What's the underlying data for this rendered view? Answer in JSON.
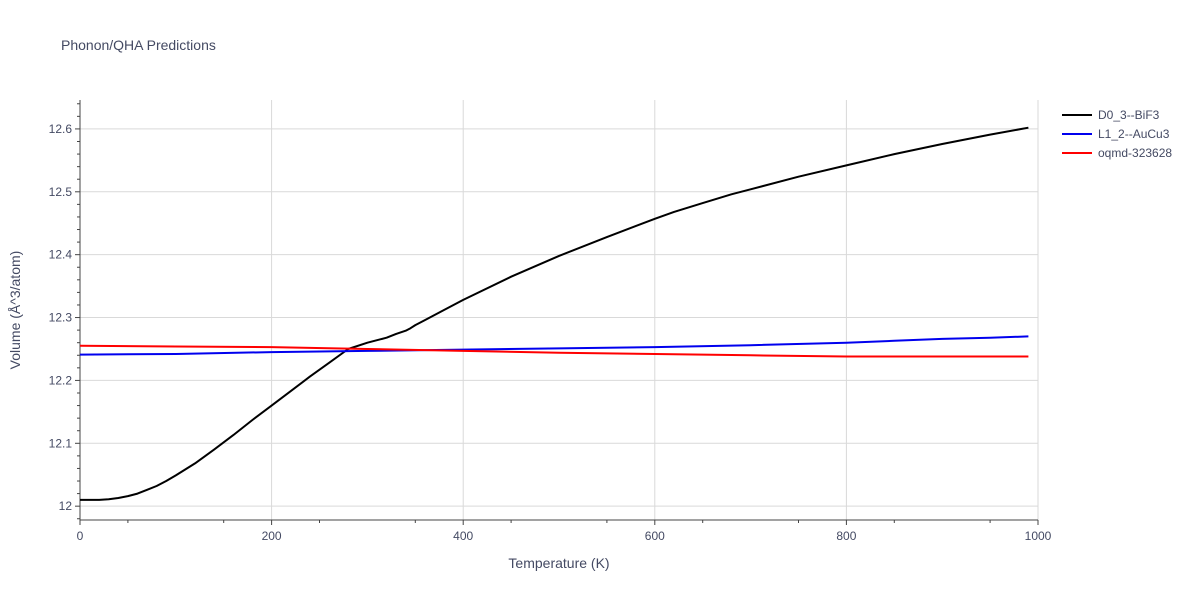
{
  "chart_data": {
    "type": "line",
    "title": "Phonon/QHA Predictions",
    "xlabel": "Temperature (K)",
    "ylabel": "Volume (Å^3/atom)",
    "xlim": [
      0,
      1000
    ],
    "ylim": [
      11.978,
      12.646
    ],
    "xticks": [
      0,
      200,
      400,
      600,
      800,
      1000
    ],
    "yticks": [
      12.0,
      12.1,
      12.2,
      12.3,
      12.4,
      12.5,
      12.6
    ],
    "ytick_labels": [
      "12",
      "12.1",
      "12.2",
      "12.3",
      "12.4",
      "12.5",
      "12.6"
    ],
    "grid": true,
    "legend_position": "top-right",
    "series": [
      {
        "name": "D0_3--BiF3",
        "color": "#000000",
        "x": [
          0,
          10,
          20,
          30,
          40,
          50,
          60,
          70,
          80,
          90,
          100,
          120,
          140,
          160,
          180,
          200,
          220,
          240,
          260,
          280,
          300,
          320,
          330,
          340,
          345,
          350,
          360,
          380,
          400,
          450,
          500,
          550,
          600,
          620,
          650,
          680,
          700,
          750,
          800,
          850,
          900,
          950,
          990
        ],
        "y": [
          12.01,
          12.01,
          12.01,
          12.011,
          12.013,
          12.016,
          12.02,
          12.026,
          12.032,
          12.04,
          12.049,
          12.068,
          12.09,
          12.113,
          12.137,
          12.16,
          12.183,
          12.206,
          12.228,
          12.25,
          12.26,
          12.268,
          12.274,
          12.279,
          12.283,
          12.288,
          12.296,
          12.312,
          12.328,
          12.365,
          12.398,
          12.428,
          12.457,
          12.468,
          12.482,
          12.496,
          12.504,
          12.524,
          12.542,
          12.56,
          12.576,
          12.591,
          12.602
        ]
      },
      {
        "name": "L1_2--AuCu3",
        "color": "#0000ee",
        "x": [
          0,
          100,
          200,
          300,
          400,
          500,
          600,
          700,
          800,
          850,
          900,
          950,
          990
        ],
        "y": [
          12.241,
          12.242,
          12.245,
          12.247,
          12.249,
          12.251,
          12.253,
          12.256,
          12.26,
          12.263,
          12.266,
          12.268,
          12.27
        ]
      },
      {
        "name": "oqmd-323628",
        "color": "#ff0000",
        "x": [
          0,
          100,
          200,
          300,
          400,
          500,
          600,
          700,
          800,
          820,
          900,
          990
        ],
        "y": [
          12.255,
          12.254,
          12.253,
          12.25,
          12.247,
          12.244,
          12.242,
          12.24,
          12.238,
          12.238,
          12.238,
          12.238
        ]
      }
    ]
  }
}
